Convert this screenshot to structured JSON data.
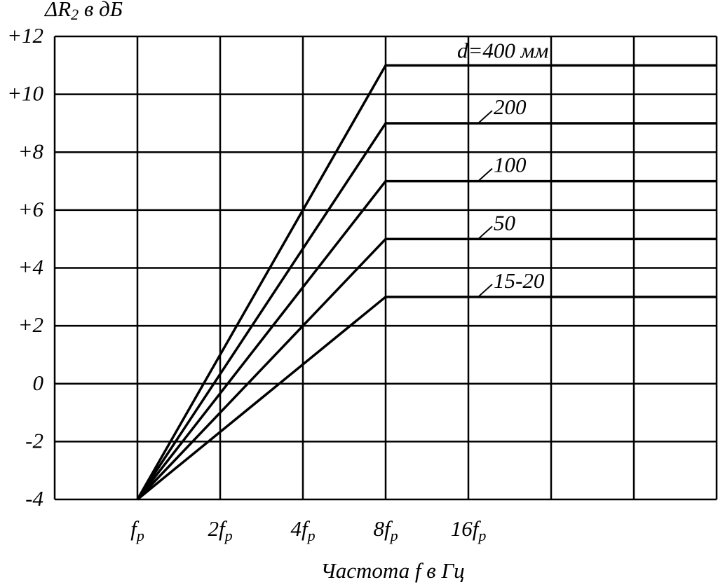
{
  "chart_data": {
    "type": "line",
    "y_label": "ΔR2 в дБ",
    "x_label": "Частота f в Гц",
    "x_scale": "log",
    "xlim": [
      0.5,
      128
    ],
    "xticks": [
      {
        "value": 0.5,
        "label": null
      },
      {
        "value": 1,
        "label": "fp"
      },
      {
        "value": 2,
        "label": "2fp"
      },
      {
        "value": 4,
        "label": "4fp"
      },
      {
        "value": 8,
        "label": "8fp"
      },
      {
        "value": 16,
        "label": "16fp"
      },
      {
        "value": 32,
        "label": null
      },
      {
        "value": 64,
        "label": null
      },
      {
        "value": 128,
        "label": null
      }
    ],
    "ylim": [
      -4,
      12
    ],
    "yticks": [
      {
        "value": -4,
        "label": "-4"
      },
      -2,
      0,
      {
        "value": 2,
        "label": "+2"
      },
      {
        "value": 4,
        "label": "+4"
      },
      {
        "value": 6,
        "label": "+6"
      },
      {
        "value": 8,
        "label": "+8"
      },
      {
        "value": 10,
        "label": "+10"
      },
      {
        "value": 12,
        "label": "+12"
      }
    ],
    "grid": true,
    "series": [
      {
        "name": "d=400 мм",
        "color": "#000000",
        "x": [
          1,
          8,
          128
        ],
        "values": [
          -4,
          11,
          11
        ]
      },
      {
        "name": "200",
        "color": "#000000",
        "x": [
          1,
          8,
          128
        ],
        "values": [
          -4,
          9,
          9
        ]
      },
      {
        "name": "100",
        "color": "#000000",
        "x": [
          1,
          8,
          128
        ],
        "values": [
          -4,
          7,
          7
        ]
      },
      {
        "name": "50",
        "color": "#000000",
        "x": [
          1,
          8,
          128
        ],
        "values": [
          -4,
          5,
          5
        ]
      },
      {
        "name": "15-20",
        "color": "#000000",
        "x": [
          1,
          8,
          128
        ],
        "values": [
          -4,
          3,
          3
        ]
      }
    ]
  }
}
